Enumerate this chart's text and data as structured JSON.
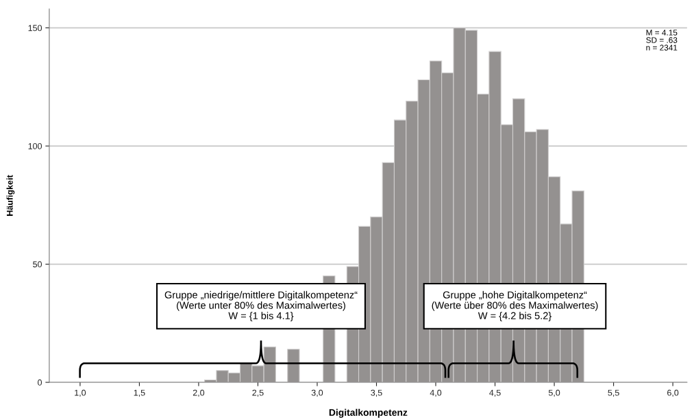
{
  "chart_data": {
    "type": "histogram",
    "xlabel": "Digitalkompetenz",
    "ylabel": "Häufigkeit",
    "bins": [
      2.05,
      2.15,
      2.25,
      2.35,
      2.45,
      2.55,
      2.65,
      2.75,
      2.85,
      2.95,
      3.05,
      3.15,
      3.25,
      3.35,
      3.45,
      3.55,
      3.65,
      3.75,
      3.85,
      3.95,
      4.05,
      4.15,
      4.25,
      4.35,
      4.45,
      4.55,
      4.65,
      4.75,
      4.85,
      4.95,
      5.05,
      5.15,
      5.25
    ],
    "values": [
      1,
      5,
      4,
      8,
      7,
      15,
      null,
      14,
      null,
      null,
      45,
      null,
      49,
      66,
      70,
      93,
      111,
      119,
      128,
      136,
      131,
      150,
      149,
      122,
      140,
      109,
      120,
      106,
      107,
      87,
      67,
      81
    ],
    "color": "#949190",
    "xlim": [
      0.74,
      6.12
    ],
    "ylim": [
      0,
      158
    ],
    "xticks": [
      {
        "value": 1,
        "label": "1,0"
      },
      {
        "value": 1.5,
        "label": "1,5"
      },
      {
        "value": 2,
        "label": "2,0"
      },
      {
        "value": 2.5,
        "label": "2,5"
      },
      {
        "value": 3,
        "label": "3,0"
      },
      {
        "value": 3.5,
        "label": "3,5"
      },
      {
        "value": 4,
        "label": "4,0"
      },
      {
        "value": 4.5,
        "label": "4,5"
      },
      {
        "value": 5,
        "label": "5,0"
      },
      {
        "value": 5.5,
        "label": "5,5"
      },
      {
        "value": 6,
        "label": "6,0"
      }
    ],
    "yticks": [
      0,
      50,
      100,
      150
    ],
    "grid": "y",
    "annotations": [
      "Gruppe „niedrige/mittlere Digitalkompetenz“\n(Werte unter 80% des Maximalwertes)\nW = {1 bis 4.1}",
      "Gruppe „hohe Digitalkompetenz“\n(Werte über 80% des Maximalwertes)\nW = {4.2 bis 5.2}",
      "M = 4.15\nSD = .63\nn = 2341"
    ]
  }
}
